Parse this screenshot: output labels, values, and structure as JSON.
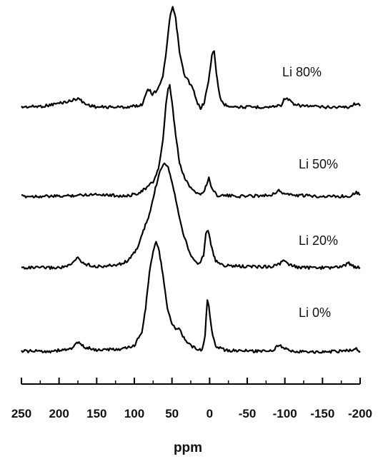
{
  "chart_data": {
    "type": "line",
    "title": "",
    "xlabel": "ppm",
    "ylabel": "",
    "xlim": [
      250,
      -200
    ],
    "x_reversed": true,
    "grid": false,
    "legend": "none",
    "stacked_offset": true,
    "tick_labels": [
      "250",
      "200",
      "150",
      "100",
      "50",
      "0",
      "-50",
      "-100",
      "-150",
      "-200"
    ],
    "tick_values": [
      250,
      200,
      150,
      100,
      50,
      0,
      -50,
      -100,
      -150,
      -200
    ],
    "series": [
      {
        "name": "Li 80%",
        "color": "#000000",
        "baseline": 0,
        "points": [
          [
            250,
            0
          ],
          [
            220,
            0.01
          ],
          [
            185,
            0.06
          ],
          [
            175,
            0.09
          ],
          [
            165,
            0.03
          ],
          [
            150,
            0
          ],
          [
            110,
            0
          ],
          [
            90,
            0.02
          ],
          [
            82,
            0.19
          ],
          [
            76,
            0.13
          ],
          [
            70,
            0.17
          ],
          [
            62,
            0.3
          ],
          [
            57,
            0.6
          ],
          [
            52,
            0.93
          ],
          [
            49,
            1.0
          ],
          [
            45,
            0.88
          ],
          [
            40,
            0.55
          ],
          [
            34,
            0.33
          ],
          [
            28,
            0.26
          ],
          [
            22,
            0.18
          ],
          [
            17,
            0.05
          ],
          [
            12,
            -0.01
          ],
          [
            7,
            0.05
          ],
          [
            3,
            0.2
          ],
          [
            0,
            0.33
          ],
          [
            -3,
            0.53
          ],
          [
            -6,
            0.56
          ],
          [
            -9,
            0.33
          ],
          [
            -14,
            0.09
          ],
          [
            -20,
            0.02
          ],
          [
            -40,
            0
          ],
          [
            -80,
            0
          ],
          [
            -95,
            0.02
          ],
          [
            -100,
            0.09
          ],
          [
            -106,
            0.07
          ],
          [
            -112,
            0.02
          ],
          [
            -150,
            0
          ],
          [
            -185,
            0
          ],
          [
            -195,
            0.04
          ],
          [
            -200,
            0.01
          ]
        ]
      },
      {
        "name": "Li 50%",
        "color": "#000000",
        "baseline": 0,
        "points": [
          [
            250,
            0
          ],
          [
            200,
            0
          ],
          [
            150,
            0.02
          ],
          [
            110,
            0
          ],
          [
            95,
            0.03
          ],
          [
            85,
            0.07
          ],
          [
            75,
            0.13
          ],
          [
            68,
            0.25
          ],
          [
            62,
            0.5
          ],
          [
            58,
            0.82
          ],
          [
            55,
            0.97
          ],
          [
            53,
            1.0
          ],
          [
            50,
            0.85
          ],
          [
            45,
            0.55
          ],
          [
            40,
            0.3
          ],
          [
            33,
            0.16
          ],
          [
            25,
            0.08
          ],
          [
            15,
            0.02
          ],
          [
            8,
            0.03
          ],
          [
            4,
            0.11
          ],
          [
            1,
            0.17
          ],
          [
            -3,
            0.07
          ],
          [
            -10,
            0.01
          ],
          [
            -40,
            0
          ],
          [
            -80,
            0.01
          ],
          [
            -92,
            0.05
          ],
          [
            -97,
            0.03
          ],
          [
            -110,
            0.01
          ],
          [
            -150,
            0
          ],
          [
            -185,
            0
          ],
          [
            -195,
            0.04
          ],
          [
            -200,
            0.01
          ]
        ]
      },
      {
        "name": "Li 20%",
        "color": "#000000",
        "baseline": 0,
        "points": [
          [
            250,
            0
          ],
          [
            200,
            0
          ],
          [
            185,
            0.02
          ],
          [
            175,
            0.1
          ],
          [
            168,
            0.04
          ],
          [
            150,
            0.01
          ],
          [
            130,
            0.02
          ],
          [
            115,
            0.04
          ],
          [
            105,
            0.09
          ],
          [
            95,
            0.2
          ],
          [
            88,
            0.35
          ],
          [
            80,
            0.5
          ],
          [
            72,
            0.75
          ],
          [
            66,
            0.92
          ],
          [
            60,
            1.0
          ],
          [
            55,
            0.95
          ],
          [
            50,
            0.82
          ],
          [
            45,
            0.65
          ],
          [
            40,
            0.48
          ],
          [
            34,
            0.3
          ],
          [
            27,
            0.15
          ],
          [
            20,
            0.06
          ],
          [
            13,
            0.04
          ],
          [
            8,
            0.12
          ],
          [
            5,
            0.32
          ],
          [
            2,
            0.36
          ],
          [
            -3,
            0.18
          ],
          [
            -8,
            0.06
          ],
          [
            -20,
            0.02
          ],
          [
            -50,
            0.01
          ],
          [
            -80,
            0.01
          ],
          [
            -92,
            0.03
          ],
          [
            -98,
            0.07
          ],
          [
            -104,
            0.03
          ],
          [
            -120,
            0
          ],
          [
            -160,
            0
          ],
          [
            -175,
            0.01
          ],
          [
            -185,
            0.04
          ],
          [
            -192,
            0.01
          ],
          [
            -200,
            0
          ]
        ]
      },
      {
        "name": "Li 0%",
        "color": "#000000",
        "baseline": 0,
        "points": [
          [
            250,
            0
          ],
          [
            210,
            0
          ],
          [
            185,
            0.02
          ],
          [
            175,
            0.08
          ],
          [
            167,
            0.04
          ],
          [
            150,
            0.01
          ],
          [
            115,
            0.02
          ],
          [
            100,
            0.05
          ],
          [
            90,
            0.18
          ],
          [
            85,
            0.4
          ],
          [
            80,
            0.72
          ],
          [
            75,
            0.93
          ],
          [
            71,
            1.0
          ],
          [
            67,
            0.92
          ],
          [
            62,
            0.7
          ],
          [
            56,
            0.4
          ],
          [
            50,
            0.25
          ],
          [
            45,
            0.2
          ],
          [
            41,
            0.22
          ],
          [
            37,
            0.16
          ],
          [
            30,
            0.08
          ],
          [
            20,
            0.03
          ],
          [
            10,
            0.01
          ],
          [
            6,
            0.15
          ],
          [
            3,
            0.48
          ],
          [
            1,
            0.42
          ],
          [
            -3,
            0.18
          ],
          [
            -8,
            0.05
          ],
          [
            -20,
            0.01
          ],
          [
            -60,
            0
          ],
          [
            -85,
            0.01
          ],
          [
            -92,
            0.06
          ],
          [
            -97,
            0.03
          ],
          [
            -110,
            0
          ],
          [
            -140,
            -0.01
          ],
          [
            -170,
            0
          ],
          [
            -188,
            0.01
          ],
          [
            -195,
            0.02
          ],
          [
            -200,
            0
          ]
        ]
      }
    ]
  }
}
